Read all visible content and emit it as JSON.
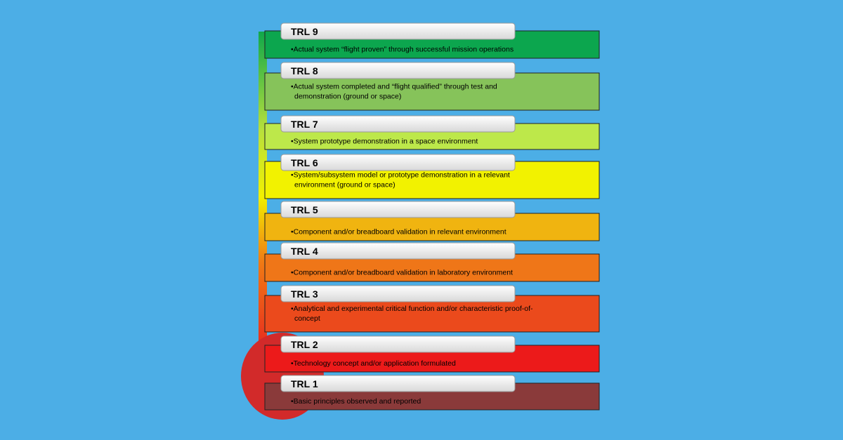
{
  "levels": [
    {
      "label": "TRL 9",
      "lines": [
        "•Actual system “flight proven” through successful mission operations"
      ]
    },
    {
      "label": "TRL 8",
      "lines": [
        "•Actual system completed and “flight qualified” through test and",
        "demonstration (ground or space)"
      ]
    },
    {
      "label": "TRL 7",
      "lines": [
        "•System prototype demonstration in a space environment"
      ]
    },
    {
      "label": "TRL 6",
      "lines": [
        "•System/subsystem model or prototype demonstration in a relevant",
        "environment (ground or space)"
      ]
    },
    {
      "label": "TRL 5",
      "lines": [
        "•Component and/or breadboard validation in relevant environment"
      ]
    },
    {
      "label": "TRL 4",
      "lines": [
        "•Component and/or breadboard validation in laboratory environment"
      ]
    },
    {
      "label": "TRL 3",
      "lines": [
        "•Analytical and experimental critical function and/or characteristic proof-of-",
        "concept"
      ]
    },
    {
      "label": "TRL 2",
      "lines": [
        "•Technology concept and/or application formulated"
      ]
    },
    {
      "label": "TRL 1",
      "lines": [
        "•Basic principles observed and reported"
      ]
    }
  ]
}
